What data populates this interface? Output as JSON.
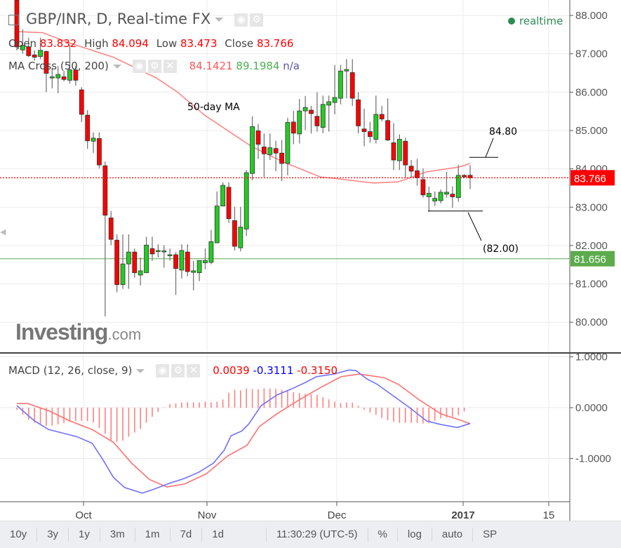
{
  "header": {
    "title": "GBP/INR, D, Real-time FX",
    "ohlc": {
      "open_label": "Open",
      "open": "83.832",
      "high_label": "High",
      "high": "84.094",
      "low_label": "Low",
      "low": "83.473",
      "close_label": "Close",
      "close": "83.766"
    },
    "ma": {
      "label": "MA Cross (50, 200)",
      "v1": "84.1421",
      "v2": "89.1984",
      "v3": "n/a"
    },
    "macd": {
      "label": "MACD (12, 26, close, 9)",
      "hist": "0.0039",
      "macd": "-0.3111",
      "signal": "-0.3150"
    },
    "realtime": "realtime"
  },
  "logo": {
    "main": "Investing",
    "suffix": ".com"
  },
  "toolbar": [
    "10y",
    "3y",
    "1y",
    "3m",
    "1m",
    "7d",
    "1d",
    "11:30:29 (UTC-5)",
    "%",
    "log",
    "auto",
    "SP"
  ],
  "colors": {
    "up": "#22cc22",
    "down": "#ff0000",
    "ma50": "#ff7f7f",
    "macd_line": "#7070ff",
    "signal_line": "#ff7070",
    "histogram": "#ff8080",
    "last_price": "#ff0000",
    "level_line": "#5cab4c"
  },
  "chart_data": [
    {
      "type": "candlestick",
      "title": "",
      "ylim": [
        79.6,
        88.4
      ],
      "y_ticks": [
        "88.000",
        "87.000",
        "86.000",
        "85.000",
        "84.000",
        "83.000",
        "82.000",
        "81.000",
        "80.000"
      ],
      "x_ticks": [
        "Oct",
        "Nov",
        "Dec",
        "2017",
        "15"
      ],
      "grid": true,
      "last_price": {
        "value": 83.766,
        "label": "83.766"
      },
      "level_line": {
        "value": 81.656,
        "label": "81.656"
      },
      "annotations": [
        {
          "text": "50-day MA"
        },
        {
          "text": "84.80",
          "level": 84.3
        },
        {
          "text": "(82.00)",
          "level": 82.9
        }
      ],
      "candles_ohlc": [
        [
          88.4,
          88.5,
          87.09,
          87.18
        ],
        [
          87.1,
          87.64,
          87.0,
          87.22
        ],
        [
          87.18,
          87.42,
          86.91,
          86.95
        ],
        [
          86.97,
          87.09,
          86.82,
          86.91
        ],
        [
          86.93,
          87.42,
          86.86,
          87.09
        ],
        [
          87.06,
          87.09,
          86.0,
          86.49
        ],
        [
          86.37,
          86.64,
          86.1,
          86.4
        ],
        [
          86.37,
          86.68,
          85.97,
          86.46
        ],
        [
          86.4,
          86.55,
          86.28,
          86.33
        ],
        [
          86.31,
          87.24,
          86.22,
          86.58
        ],
        [
          86.58,
          86.68,
          86.17,
          86.31
        ],
        [
          86.06,
          86.13,
          85.22,
          85.42
        ],
        [
          85.4,
          85.53,
          84.52,
          84.73
        ],
        [
          84.72,
          84.95,
          84.41,
          84.8
        ],
        [
          84.79,
          84.95,
          84.01,
          84.1
        ],
        [
          84.08,
          84.19,
          80.15,
          82.79
        ],
        [
          82.72,
          82.9,
          82.01,
          82.16
        ],
        [
          82.14,
          82.29,
          80.78,
          80.98
        ],
        [
          80.98,
          82.29,
          80.87,
          81.52
        ],
        [
          81.52,
          82.29,
          80.87,
          81.83
        ],
        [
          81.83,
          81.92,
          81.16,
          81.29
        ],
        [
          81.23,
          81.69,
          80.96,
          81.34
        ],
        [
          81.29,
          82.23,
          81.29,
          82.01
        ],
        [
          81.92,
          82.23,
          81.6,
          81.78
        ],
        [
          81.85,
          82.03,
          81.69,
          81.87
        ],
        [
          81.86,
          82.01,
          81.42,
          81.86
        ],
        [
          81.74,
          81.92,
          81.61,
          81.76
        ],
        [
          81.76,
          81.83,
          80.71,
          81.4
        ],
        [
          81.36,
          82.03,
          81.14,
          81.87
        ],
        [
          81.83,
          82.03,
          81.2,
          81.32
        ],
        [
          81.3,
          81.6,
          80.83,
          81.34
        ],
        [
          81.29,
          81.6,
          81.07,
          81.61
        ],
        [
          81.55,
          81.92,
          81.38,
          81.61
        ],
        [
          81.56,
          82.41,
          81.51,
          82.1
        ],
        [
          82.07,
          83.41,
          82.07,
          83.03
        ],
        [
          83.03,
          83.65,
          83.03,
          83.57
        ],
        [
          83.52,
          83.65,
          82.59,
          82.7
        ],
        [
          82.65,
          83.01,
          81.87,
          81.98
        ],
        [
          81.94,
          83.01,
          81.85,
          82.48
        ],
        [
          82.43,
          83.97,
          82.25,
          83.9
        ],
        [
          83.88,
          85.37,
          83.7,
          85.1
        ],
        [
          84.99,
          85.17,
          84.26,
          84.64
        ],
        [
          84.57,
          84.92,
          83.79,
          84.39
        ],
        [
          84.37,
          84.92,
          84.23,
          84.55
        ],
        [
          84.53,
          84.73,
          83.94,
          84.41
        ],
        [
          84.41,
          84.75,
          83.68,
          84.14
        ],
        [
          84.14,
          85.33,
          83.83,
          85.21
        ],
        [
          85.22,
          85.51,
          84.64,
          84.93
        ],
        [
          84.91,
          85.82,
          84.66,
          85.51
        ],
        [
          85.51,
          85.9,
          85.01,
          85.6
        ],
        [
          85.53,
          85.64,
          84.92,
          85.44
        ],
        [
          85.37,
          86.0,
          84.97,
          85.12
        ],
        [
          85.08,
          85.91,
          84.93,
          85.68
        ],
        [
          85.66,
          85.91,
          84.97,
          85.75
        ],
        [
          85.73,
          86.71,
          85.42,
          85.86
        ],
        [
          85.84,
          86.71,
          85.68,
          86.55
        ],
        [
          86.55,
          86.86,
          85.84,
          86.59
        ],
        [
          86.51,
          86.86,
          85.64,
          85.84
        ],
        [
          85.8,
          86.0,
          84.92,
          85.12
        ],
        [
          85.04,
          85.57,
          84.59,
          84.97
        ],
        [
          84.97,
          85.22,
          84.68,
          84.84
        ],
        [
          84.77,
          85.91,
          84.66,
          85.42
        ],
        [
          85.42,
          85.64,
          85.24,
          85.3
        ],
        [
          85.26,
          85.84,
          84.73,
          84.75
        ],
        [
          84.68,
          85.19,
          83.97,
          84.23
        ],
        [
          84.21,
          84.9,
          83.97,
          84.77
        ],
        [
          84.72,
          84.81,
          83.77,
          84.1
        ],
        [
          84.07,
          84.23,
          83.77,
          83.94
        ],
        [
          83.95,
          84.26,
          83.56,
          83.77
        ],
        [
          83.72,
          84.01,
          83.25,
          83.32
        ],
        [
          83.27,
          83.54,
          82.88,
          83.36
        ],
        [
          83.16,
          83.41,
          83.03,
          83.23
        ],
        [
          83.17,
          83.46,
          83.1,
          83.39
        ],
        [
          83.34,
          83.92,
          83.25,
          83.39
        ],
        [
          83.34,
          83.54,
          82.98,
          83.27
        ],
        [
          83.25,
          84.1,
          83.14,
          83.83
        ],
        [
          83.83,
          83.86,
          83.77,
          83.79
        ],
        [
          83.832,
          84.094,
          83.473,
          83.766
        ]
      ],
      "ma50_by_candle": [
        [
          1,
          87.58
        ],
        [
          5.4,
          87.55
        ],
        [
          10.2,
          87.27
        ],
        [
          17.4,
          86.91
        ],
        [
          24.7,
          86.37
        ],
        [
          28.3,
          86.0
        ],
        [
          32.8,
          85.41
        ],
        [
          36.4,
          85.04
        ],
        [
          40.8,
          84.59
        ],
        [
          46.1,
          84.19
        ],
        [
          52.5,
          83.79
        ],
        [
          55.5,
          83.74
        ],
        [
          61.6,
          83.63
        ],
        [
          65.8,
          83.66
        ],
        [
          70.6,
          83.92
        ],
        [
          76.2,
          84.05
        ],
        [
          78,
          84.14
        ]
      ]
    },
    {
      "type": "line",
      "title": "",
      "ylim": [
        -1.9,
        1.05
      ],
      "y_ticks": [
        "1.0000",
        "0.0000",
        "-1.0000"
      ],
      "macd_by_candle": [
        [
          1,
          0.04
        ],
        [
          4,
          -0.26
        ],
        [
          6.4,
          -0.43
        ],
        [
          8.8,
          -0.5
        ],
        [
          11.2,
          -0.57
        ],
        [
          13.8,
          -0.7
        ],
        [
          15.6,
          -1.02
        ],
        [
          17.4,
          -1.37
        ],
        [
          19.3,
          -1.57
        ],
        [
          22.3,
          -1.68
        ],
        [
          24.1,
          -1.61
        ],
        [
          27.1,
          -1.48
        ],
        [
          29.5,
          -1.39
        ],
        [
          31.9,
          -1.27
        ],
        [
          34.4,
          -1.09
        ],
        [
          36.2,
          -0.84
        ],
        [
          37.4,
          -0.55
        ],
        [
          39.2,
          -0.46
        ],
        [
          40.4,
          -0.32
        ],
        [
          42.5,
          0.04
        ],
        [
          45.2,
          0.25
        ],
        [
          47.7,
          0.37
        ],
        [
          50.1,
          0.5
        ],
        [
          51.9,
          0.61
        ],
        [
          54.9,
          0.66
        ],
        [
          57.4,
          0.74
        ],
        [
          58.6,
          0.73
        ],
        [
          60.4,
          0.57
        ],
        [
          62.2,
          0.46
        ],
        [
          64.6,
          0.26
        ],
        [
          67.6,
          0.01
        ],
        [
          70.6,
          -0.26
        ],
        [
          73.0,
          -0.33
        ],
        [
          75.8,
          -0.39
        ],
        [
          78,
          -0.3111
        ]
      ],
      "signal_by_candle": [
        [
          1,
          0.08
        ],
        [
          2.9,
          0.08
        ],
        [
          6.4,
          -0.06
        ],
        [
          10,
          -0.26
        ],
        [
          13.8,
          -0.43
        ],
        [
          17.4,
          -0.68
        ],
        [
          20.5,
          -1.09
        ],
        [
          23.5,
          -1.41
        ],
        [
          26.5,
          -1.56
        ],
        [
          29.5,
          -1.5
        ],
        [
          33.2,
          -1.3
        ],
        [
          36.8,
          -0.95
        ],
        [
          40.1,
          -0.74
        ],
        [
          42.2,
          -0.37
        ],
        [
          45.2,
          -0.12
        ],
        [
          48.9,
          0.15
        ],
        [
          52.5,
          0.39
        ],
        [
          56.1,
          0.61
        ],
        [
          59.2,
          0.66
        ],
        [
          63.4,
          0.59
        ],
        [
          65.8,
          0.46
        ],
        [
          69.4,
          0.15
        ],
        [
          73,
          -0.12
        ],
        [
          76.7,
          -0.26
        ],
        [
          78,
          -0.315
        ]
      ]
    }
  ]
}
